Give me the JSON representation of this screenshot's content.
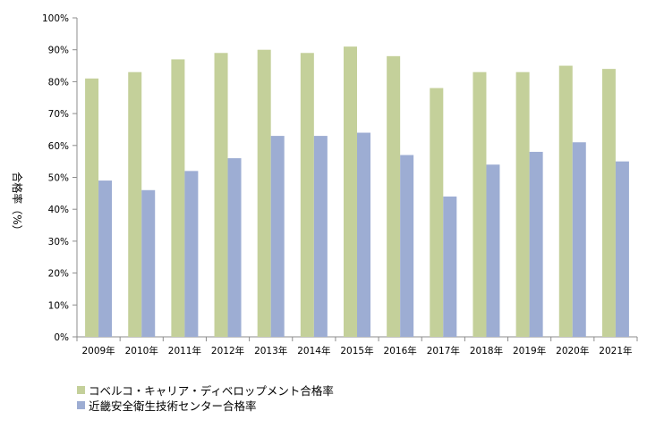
{
  "chart_data": {
    "type": "bar",
    "categories": [
      "2009年",
      "2010年",
      "2011年",
      "2012年",
      "2013年",
      "2014年",
      "2015年",
      "2016年",
      "2017年",
      "2018年",
      "2019年",
      "2020年",
      "2021年"
    ],
    "series": [
      {
        "name": "コベルコ・キャリア・ディベロップメント合格率",
        "color": "#c4d09a",
        "values": [
          81,
          83,
          87,
          89,
          90,
          89,
          91,
          88,
          78,
          83,
          83,
          85,
          84
        ]
      },
      {
        "name": "近畿安全衛生技術センター合格率",
        "color": "#9dadd3",
        "values": [
          49,
          46,
          52,
          56,
          63,
          63,
          64,
          57,
          44,
          54,
          58,
          61,
          55
        ]
      }
    ],
    "ylabel": "合格率（%）",
    "ylim": [
      0,
      100
    ],
    "yticks": [
      "0%",
      "10%",
      "20%",
      "30%",
      "40%",
      "50%",
      "60%",
      "70%",
      "80%",
      "90%",
      "100%"
    ],
    "grid": false,
    "legend_position": "bottom-left"
  }
}
